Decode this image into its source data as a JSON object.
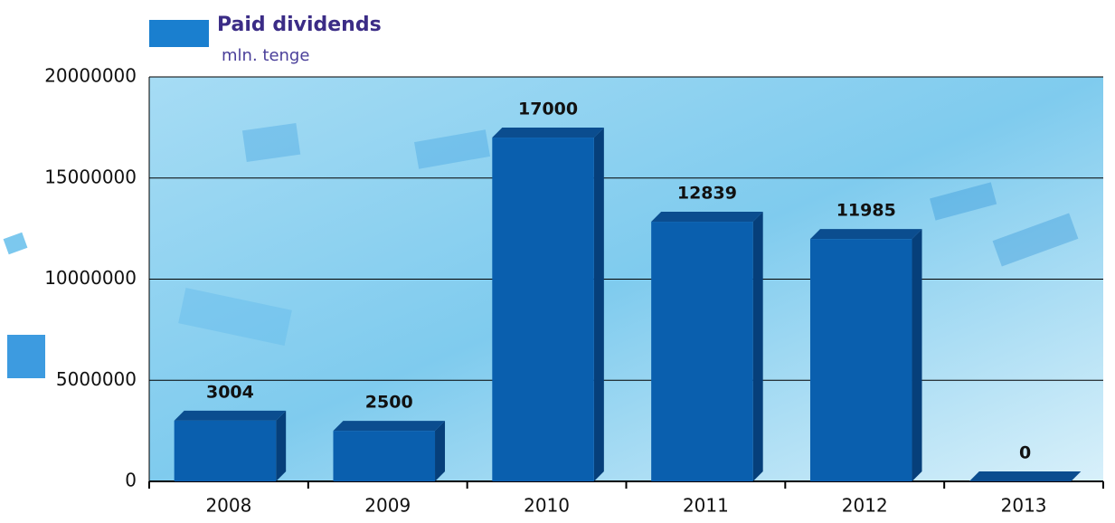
{
  "chart_data": {
    "type": "bar",
    "title": "Paid dividends",
    "subtitle": "mln. tenge",
    "categories": [
      "2008",
      "2009",
      "2010",
      "2011",
      "2012",
      "2013"
    ],
    "values": [
      3004000,
      2500000,
      17000000,
      12839000,
      11985000,
      0
    ],
    "value_labels": [
      "3004",
      "2500",
      "17000",
      "12839",
      "11985",
      "0"
    ],
    "color": "#0a5fae",
    "ylim": [
      0,
      20000000
    ],
    "yticks": [
      0,
      5000000,
      10000000,
      15000000,
      20000000
    ],
    "grid": true
  }
}
